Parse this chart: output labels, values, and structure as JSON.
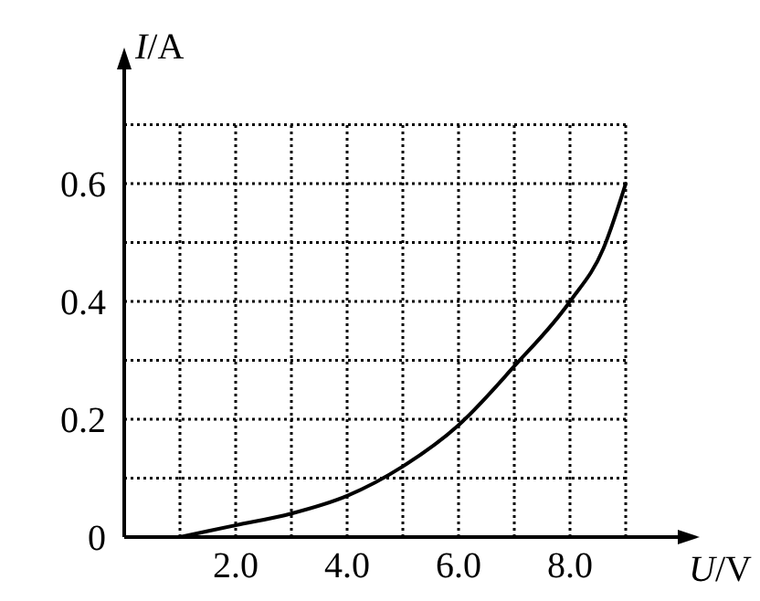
{
  "chart_data": {
    "type": "line",
    "xlabel": "U/V",
    "ylabel": "I/A",
    "x": [
      1,
      2,
      3,
      4,
      5,
      6,
      7,
      8,
      8.6,
      9
    ],
    "series": [
      {
        "color": "#000000",
        "values": [
          0,
          0.02,
          0.04,
          0.07,
          0.12,
          0.19,
          0.29,
          0.4,
          0.49,
          0.6
        ]
      }
    ],
    "xlim": [
      0,
      10
    ],
    "ylim": [
      0,
      0.8
    ],
    "xticks": [
      {
        "value": 1,
        "label": null
      },
      {
        "value": 2,
        "label": "2.0"
      },
      {
        "value": 3,
        "label": null
      },
      {
        "value": 4,
        "label": "4.0"
      },
      {
        "value": 5,
        "label": null
      },
      {
        "value": 6,
        "label": "6.0"
      },
      {
        "value": 7,
        "label": null
      },
      {
        "value": 8,
        "label": "8.0"
      },
      {
        "value": 9,
        "label": null
      }
    ],
    "yticks": [
      {
        "value": 0,
        "label": "0"
      },
      {
        "value": 0.1,
        "label": null
      },
      0.2,
      {
        "value": 0.3,
        "label": null
      },
      0.4,
      {
        "value": 0.5,
        "label": null
      },
      0.6,
      {
        "value": 0.7,
        "label": null
      }
    ],
    "grid": true,
    "marker": "none",
    "line_style": "solid"
  }
}
